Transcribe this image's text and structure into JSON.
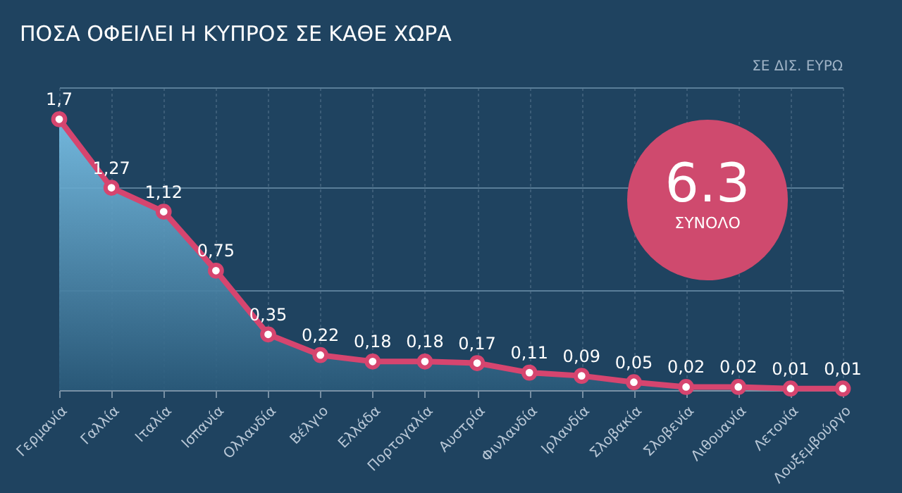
{
  "chart_data": {
    "type": "area",
    "title": "ΠΟΣΑ ΟΦΕΙΛΕΙ Η ΚΥΠΡΟΣ ΣΕ ΚΑΘΕ ΧΩΡΑ",
    "categories": [
      "Γερμανία",
      "Γαλλία",
      "Ιταλία",
      "Ισπανία",
      "Ολλανδία",
      "Βέλγιο",
      "Ελλάδα",
      "Πορτογαλία",
      "Αυστρία",
      "Φινλανδία",
      "Ιρλανδία",
      "Σλοβακία",
      "Σλοβενία",
      "Λιθουανία",
      "Λετονία",
      "Λουξεμβούργο"
    ],
    "series": [
      {
        "color": "#d6456f",
        "values": [
          1.7,
          1.27,
          1.12,
          0.75,
          0.35,
          0.22,
          0.18,
          0.18,
          0.17,
          0.11,
          0.09,
          0.05,
          0.02,
          0.02,
          0.01,
          0.01
        ],
        "value_labels": [
          "1,7",
          "1,27",
          "1,12",
          "0,75",
          "0,35",
          "0,22",
          "0,18",
          "0,18",
          "0,17",
          "0,11",
          "0,09",
          "0,05",
          "0,02",
          "0,02",
          "0,01",
          "0,01"
        ]
      }
    ],
    "ylim": [
      0,
      1.9
    ],
    "yticks": [
      {
        "value": 0,
        "label": null
      },
      {
        "value": 0.63,
        "label": null
      },
      {
        "value": 1.27,
        "label": null
      },
      {
        "value": 1.9,
        "label": null
      }
    ],
    "tick_labels": "x",
    "grid": true,
    "marker": "circle",
    "annotations": [
      "ΣΕ ΔΙΣ. ΕΥΡΩ",
      "6.3",
      "ΣΥΝΟΛΟ"
    ]
  }
}
